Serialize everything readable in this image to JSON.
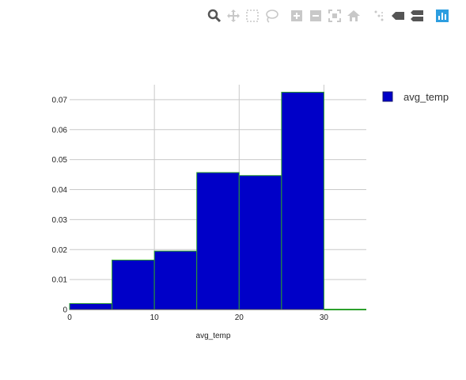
{
  "modebar": {
    "buttons": [
      {
        "name": "zoom-icon",
        "icon": "zoom"
      },
      {
        "name": "pan-icon",
        "icon": "pan"
      },
      {
        "name": "box-select-icon",
        "icon": "select"
      },
      {
        "name": "lasso-select-icon",
        "icon": "lasso"
      },
      {
        "name": "zoom-in-icon",
        "icon": "zoom-in"
      },
      {
        "name": "zoom-out-icon",
        "icon": "zoom-out"
      },
      {
        "name": "autoscale-icon",
        "icon": "autoscale"
      },
      {
        "name": "reset-axes-icon",
        "icon": "home"
      },
      {
        "name": "spike-lines-icon",
        "icon": "spikes"
      },
      {
        "name": "hover-closest-icon",
        "icon": "hover-closest"
      },
      {
        "name": "hover-compare-icon",
        "icon": "hover-compare"
      },
      {
        "name": "plotly-logo-icon",
        "icon": "plotly"
      }
    ],
    "active_color": "#555555",
    "inactive_color": "#c8c8c8",
    "logo_color": "#2d9ee0"
  },
  "chart_data": {
    "type": "bar",
    "title": "",
    "xlabel": "avg_temp",
    "ylabel": "",
    "xlim": [
      0,
      35
    ],
    "ylim": [
      0,
      0.075
    ],
    "xticks": [
      0,
      10,
      20,
      30
    ],
    "yticks": [
      0,
      0.01,
      0.02,
      0.03,
      0.04,
      0.05,
      0.06,
      0.07
    ],
    "xtick_labels": [
      "0",
      "10",
      "20",
      "30"
    ],
    "ytick_labels": [
      "0",
      "0.01",
      "0.02",
      "0.03",
      "0.04",
      "0.05",
      "0.06",
      "0.07"
    ],
    "grid": true,
    "legend_position": "top-right",
    "series": [
      {
        "name": "avg_temp",
        "color": "#0000c8",
        "edge_color": "#2ca02c",
        "bins": [
          {
            "x0": 0,
            "x1": 5,
            "value": 0.002
          },
          {
            "x0": 5,
            "x1": 10,
            "value": 0.0165
          },
          {
            "x0": 10,
            "x1": 15,
            "value": 0.0195
          },
          {
            "x0": 15,
            "x1": 20,
            "value": 0.0457
          },
          {
            "x0": 20,
            "x1": 25,
            "value": 0.0447
          },
          {
            "x0": 25,
            "x1": 30,
            "value": 0.0725
          }
        ]
      }
    ]
  }
}
